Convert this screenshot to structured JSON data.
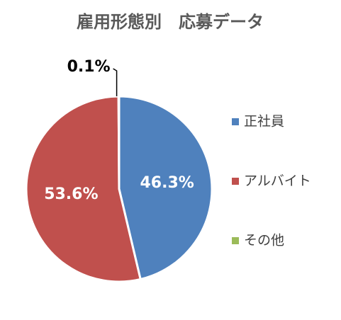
{
  "chart_data": {
    "type": "pie",
    "title": "雇用形態別　応募データ",
    "categories": [
      "正社員",
      "アルバイト",
      "その他"
    ],
    "values": [
      46.3,
      53.6,
      0.1
    ],
    "value_labels": [
      "46.3%",
      "53.6%",
      "0.1%"
    ],
    "colors": [
      "#4f81bd",
      "#c0504d",
      "#9bbb59"
    ],
    "legend": "right"
  }
}
